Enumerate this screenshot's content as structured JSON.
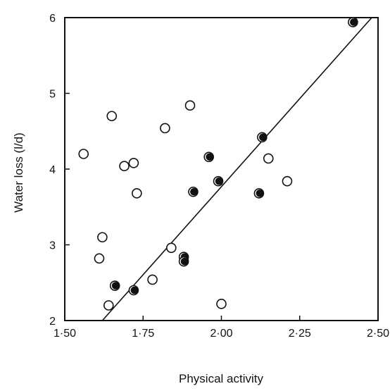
{
  "chart_data": {
    "type": "scatter",
    "title": "",
    "xlabel": "Physical activity",
    "ylabel": "Water loss (l/d)",
    "xlim": [
      1.5,
      2.5
    ],
    "ylim": [
      2,
      6
    ],
    "x_ticks": [
      {
        "value": 1.5,
        "label": "1·50"
      },
      {
        "value": 1.75,
        "label": "1·75"
      },
      {
        "value": 2.0,
        "label": "2·00"
      },
      {
        "value": 2.25,
        "label": "2·25"
      },
      {
        "value": 2.5,
        "label": "2·50"
      }
    ],
    "y_ticks": [
      {
        "value": 2,
        "label": "2"
      },
      {
        "value": 3,
        "label": "3"
      },
      {
        "value": 4,
        "label": "4"
      },
      {
        "value": 5,
        "label": "5"
      },
      {
        "value": 6,
        "label": "6"
      }
    ],
    "grid": false,
    "legend": "none",
    "series": [
      {
        "marker": "open-circle",
        "points": [
          [
            1.56,
            4.2
          ],
          [
            1.65,
            4.7
          ],
          [
            1.69,
            4.04
          ],
          [
            1.72,
            4.08
          ],
          [
            1.73,
            3.68
          ],
          [
            1.62,
            3.1
          ],
          [
            1.61,
            2.82
          ],
          [
            1.64,
            2.2
          ],
          [
            1.78,
            2.54
          ],
          [
            1.84,
            2.96
          ],
          [
            1.82,
            4.54
          ],
          [
            1.9,
            4.84
          ],
          [
            2.15,
            4.14
          ],
          [
            2.21,
            3.84
          ],
          [
            2.0,
            2.22
          ]
        ]
      },
      {
        "marker": "filled-circle",
        "points": [
          [
            1.66,
            2.46
          ],
          [
            1.72,
            2.4
          ],
          [
            1.88,
            2.84
          ],
          [
            1.88,
            2.78
          ],
          [
            1.91,
            3.7
          ],
          [
            1.96,
            4.16
          ],
          [
            1.99,
            3.84
          ],
          [
            2.12,
            3.68
          ],
          [
            2.13,
            4.42
          ],
          [
            2.42,
            5.94
          ]
        ]
      }
    ],
    "regression_line": {
      "x": [
        1.62,
        2.48
      ],
      "y": [
        2.0,
        6.0
      ]
    }
  }
}
